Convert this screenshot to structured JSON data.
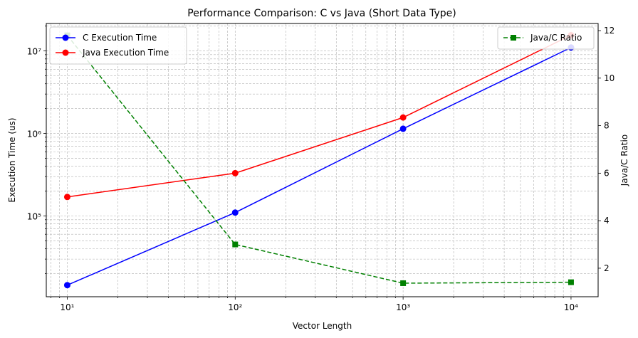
{
  "chart_data": {
    "type": "line",
    "title": "Performance Comparison: C vs Java (Short Data Type)",
    "xlabel": "Vector Length",
    "ylabel": "Execution Time (us)",
    "y2label": "Java/C Ratio",
    "x": [
      10,
      100,
      1000,
      10000
    ],
    "x_scale": "log",
    "y_scale": "log",
    "xlim": [
      7.5,
      14500
    ],
    "ylim": [
      10500,
      21500000
    ],
    "y2lim": [
      0.8,
      12.3
    ],
    "x_tick_labels": [
      "10¹",
      "10²",
      "10³",
      "10⁴"
    ],
    "y_tick_labels": [
      "10⁵",
      "10⁶",
      "10⁷"
    ],
    "y2_ticks": [
      2,
      4,
      6,
      8,
      10,
      12
    ],
    "y2_tick_labels": [
      "2",
      "4",
      "6",
      "8",
      "10",
      "12"
    ],
    "grid": true,
    "series": [
      {
        "name": "C Execution Time",
        "axis": "left",
        "values": [
          14500,
          110000,
          1140000,
          11000000
        ],
        "color": "#0000ff",
        "marker": "circle",
        "style": "solid"
      },
      {
        "name": "Java Execution Time",
        "axis": "left",
        "values": [
          170000,
          330000,
          1560000,
          15500000
        ],
        "color": "#ff0000",
        "marker": "circle",
        "style": "solid"
      },
      {
        "name": "Java/C Ratio",
        "axis": "right",
        "values": [
          11.8,
          3.0,
          1.37,
          1.41
        ],
        "color": "#008000",
        "marker": "square",
        "style": "dashed"
      }
    ],
    "legend_left": {
      "placement": "upper-left",
      "entries": [
        "C Execution Time",
        "Java Execution Time"
      ]
    },
    "legend_right": {
      "placement": "upper-right",
      "entries": [
        "Java/C Ratio"
      ]
    }
  }
}
